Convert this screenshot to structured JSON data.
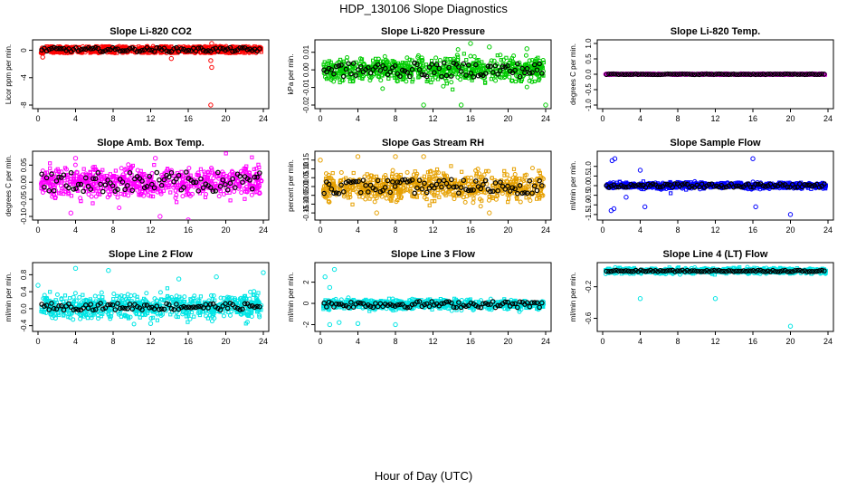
{
  "title": "HDP_130106  Slope Diagnostics",
  "xlabel": "Hour of Day (UTC)",
  "chart_data": [
    {
      "type": "scatter",
      "title": "Slope Li-820 CO2",
      "ylabel": "Licor ppm per min.",
      "xlim": [
        0,
        24
      ],
      "ylim": [
        -8,
        1
      ],
      "yticks": [
        -8,
        -4,
        0
      ],
      "xticks": [
        0,
        4,
        8,
        12,
        16,
        20,
        24
      ],
      "color": "#ff0000",
      "band": [
        -0.4,
        0.6
      ],
      "outliers": [
        [
          18.4,
          -8
        ],
        [
          18.5,
          -2.5
        ],
        [
          18.4,
          -1.5
        ],
        [
          18.5,
          1
        ],
        [
          14.2,
          -1.2
        ],
        [
          0.5,
          -1
        ]
      ],
      "black_amp": 0.3
    },
    {
      "type": "scatter",
      "title": "Slope Li-820 Pressure",
      "ylabel": "kPa per min.",
      "xlim": [
        0,
        24
      ],
      "ylim": [
        -0.02,
        0.015
      ],
      "yticks": [
        -0.02,
        -0.01,
        0,
        0.01
      ],
      "ytick_labels": [
        "-0.02",
        "-0.01",
        "0.00",
        "0.01"
      ],
      "xticks": [
        0,
        4,
        8,
        12,
        16,
        20,
        24
      ],
      "color": "#00cc00",
      "band": [
        -0.008,
        0.008
      ],
      "spread": 0.006,
      "outliers": [
        [
          16,
          0.015
        ],
        [
          18,
          0.013
        ],
        [
          11,
          -0.02
        ],
        [
          22,
          0.012
        ],
        [
          24,
          -0.02
        ],
        [
          15,
          -0.02
        ]
      ],
      "black_amp": 0.004
    },
    {
      "type": "scatter",
      "title": "Slope Li-820 Temp.",
      "ylabel": "degrees C per min.",
      "xlim": [
        0,
        24
      ],
      "ylim": [
        -1,
        1
      ],
      "yticks": [
        -1,
        -0.5,
        0,
        0.5,
        1
      ],
      "ytick_labels": [
        "-1.0",
        "-0.5",
        "0.0",
        "0.5",
        "1.0"
      ],
      "xticks": [
        0,
        4,
        8,
        12,
        16,
        20,
        24
      ],
      "color": "#ff00ff",
      "band": [
        -0.02,
        0.02
      ],
      "outliers": [],
      "black_amp": 0.01
    },
    {
      "type": "scatter",
      "title": "Slope Amb. Box Temp.",
      "ylabel": "degrees C per min.",
      "xlim": [
        0,
        24
      ],
      "ylim": [
        -0.1,
        0.08
      ],
      "yticks": [
        -0.1,
        -0.05,
        0,
        0.05
      ],
      "ytick_labels": [
        "-0.10",
        "-0.05",
        "0.00",
        "0.05"
      ],
      "xticks": [
        0,
        4,
        8,
        12,
        16,
        20,
        24
      ],
      "color": "#ff00ff",
      "band": [
        -0.05,
        0.05
      ],
      "spread": 0.04,
      "outliers": [
        [
          16,
          -0.11
        ],
        [
          4,
          0.07
        ],
        [
          12.5,
          0.07
        ],
        [
          13,
          -0.1
        ],
        [
          3.5,
          -0.09
        ]
      ],
      "black_amp": 0.03
    },
    {
      "type": "scatter",
      "title": "Slope Gas Stream RH",
      "ylabel": "percent per min.",
      "xlim": [
        0,
        24
      ],
      "ylim": [
        -0.17,
        0.18
      ],
      "yticks": [
        -0.15,
        -0.1,
        -0.05,
        0,
        0.05,
        0.1,
        0.15
      ],
      "ytick_labels": [
        "-0.15",
        "-0.10",
        "-0.05",
        "0.00",
        "0.05",
        "0.10",
        "0.15"
      ],
      "xticks": [
        0,
        4,
        8,
        12,
        16,
        20,
        24
      ],
      "color": "#e6a000",
      "band": [
        -0.08,
        0.08
      ],
      "spread": 0.07,
      "outliers": [
        [
          4,
          0.17
        ],
        [
          8,
          0.17
        ],
        [
          11,
          0.17
        ],
        [
          0,
          0.15
        ],
        [
          6,
          -0.15
        ],
        [
          18,
          -0.15
        ]
      ],
      "black_amp": 0.04
    },
    {
      "type": "scatter",
      "title": "Slope Sample Flow",
      "ylabel": "ml/min per min.",
      "xlim": [
        0,
        24
      ],
      "ylim": [
        -1.6,
        1.6
      ],
      "yticks": [
        -1.5,
        -1,
        -0.5,
        0,
        0.5,
        1
      ],
      "ytick_labels": [
        "-1.5",
        "-1.0",
        "-0.5",
        "0.0",
        "0.5",
        "1.0"
      ],
      "xticks": [
        0,
        4,
        8,
        12,
        16,
        20,
        24
      ],
      "color": "#0000ff",
      "band": [
        -0.15,
        0.15
      ],
      "spread": 0.15,
      "outliers": [
        [
          1,
          1.3
        ],
        [
          1.3,
          1.4
        ],
        [
          4,
          0.8
        ],
        [
          1.2,
          -1.2
        ],
        [
          0.9,
          -1.3
        ],
        [
          4.5,
          -1.1
        ],
        [
          16,
          1.4
        ],
        [
          16.3,
          -1.1
        ],
        [
          20,
          -1.5
        ],
        [
          2.5,
          -0.6
        ]
      ],
      "black_amp": 0.1
    },
    {
      "type": "scatter",
      "title": "Slope Line 2 Flow",
      "ylabel": "ml/min per min.",
      "xlim": [
        0,
        24
      ],
      "ylim": [
        -0.45,
        1.0
      ],
      "yticks": [
        -0.4,
        0,
        0.4,
        0.8
      ],
      "ytick_labels": [
        "-0.4",
        "0.0",
        "0.4",
        "0.8"
      ],
      "xticks": [
        0,
        4,
        8,
        12,
        16,
        20,
        24
      ],
      "color": "#00e5e5",
      "band": [
        -0.15,
        0.25
      ],
      "spread": 0.25,
      "outliers": [
        [
          4,
          0.95
        ],
        [
          7.5,
          0.9
        ],
        [
          0,
          0.55
        ],
        [
          24,
          0.85
        ],
        [
          19,
          0.75
        ],
        [
          15,
          0.7
        ],
        [
          12,
          -0.35
        ]
      ],
      "black_amp": 0.08
    },
    {
      "type": "scatter",
      "title": "Slope Line 3 Flow",
      "ylabel": "ml/min per min.",
      "xlim": [
        0,
        24
      ],
      "ylim": [
        -2.3,
        3.5
      ],
      "yticks": [
        -2,
        0,
        2
      ],
      "xticks": [
        0,
        4,
        8,
        12,
        16,
        20,
        24
      ],
      "color": "#00e5e5",
      "band": [
        -0.8,
        0.6
      ],
      "spread": 0.4,
      "outliers": [
        [
          1.5,
          3.2
        ],
        [
          0.5,
          2.5
        ],
        [
          1,
          1.5
        ],
        [
          1,
          -2
        ],
        [
          2,
          -1.8
        ],
        [
          4,
          -1.9
        ],
        [
          8,
          -2
        ]
      ],
      "black_amp": 0.3
    },
    {
      "type": "scatter",
      "title": "Slope Line 4 (LT) Flow",
      "ylabel": "ml/min per min.",
      "xlim": [
        0,
        24
      ],
      "ylim": [
        -0.72,
        0.06
      ],
      "yticks": [
        -0.6,
        -0.2
      ],
      "ytick_labels": [
        "-0.6",
        "-0.2"
      ],
      "xticks": [
        0,
        4,
        8,
        12,
        16,
        20,
        24
      ],
      "color": "#00e5e5",
      "band": [
        -0.03,
        0.03
      ],
      "spread": 0.03,
      "outliers": [
        [
          4,
          -0.35
        ],
        [
          12,
          -0.35
        ],
        [
          20,
          -0.7
        ]
      ],
      "black_amp": 0.01
    }
  ]
}
